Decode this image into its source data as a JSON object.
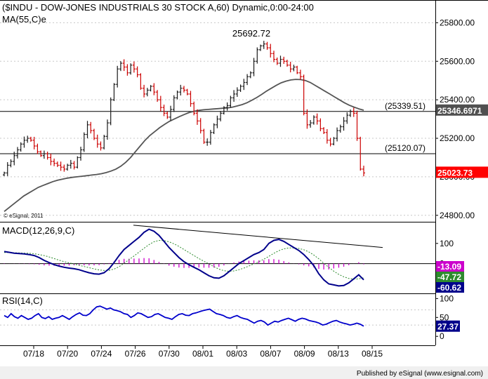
{
  "header": {
    "title": "($INDU - DOW-JONES INDUSTRIALS 30 STOCK A,60) Dynamic,0:00-24:00",
    "ma_label": "MA(55,C)e",
    "copyright": "© eSignal, 2011"
  },
  "footer": {
    "published": "Published by eSignal (www.esignal.com)"
  },
  "colors": {
    "up_bar": "#1a1a1a",
    "down_bar": "#cc0000",
    "ma_line": "#555555",
    "macd_line": "#00008b",
    "signal_line": "#2e8b2e",
    "histogram": "#cc00cc",
    "rsi_line": "#0000cc",
    "last_price_bg": "#ff0000",
    "level_bg": "#505050",
    "axis": "#000000",
    "grid": "#c8c8c8"
  },
  "chart_data": [
    {
      "type": "line",
      "panel": "price",
      "title": "($INDU - DOW-JONES INDUSTRIALS 30 STOCK A,60) Dynamic,0:00-24:00",
      "x_tick_labels": [
        "07/18",
        "07/20",
        "07/24",
        "07/26",
        "07/30",
        "08/01",
        "08/03",
        "08/07",
        "08/09",
        "08/13",
        "08/15"
      ],
      "y_ticks": [
        "25800.00",
        "25600.00",
        "25400.00",
        "25200.00",
        "25000.00",
        "24800.00"
      ],
      "ylim": [
        24770,
        25900
      ],
      "grid": true,
      "series": [
        {
          "name": "Price",
          "style": "ohlc-bars",
          "values": [
            25020,
            25060,
            25080,
            25110,
            25140,
            25170,
            25190,
            25200,
            25190,
            25160,
            25130,
            25110,
            25120,
            25100,
            25080,
            25070,
            25060,
            25050,
            25040,
            25060,
            25070,
            25050,
            25100,
            25140,
            25220,
            25270,
            25240,
            25200,
            25170,
            25150,
            25210,
            25280,
            25400,
            25480,
            25560,
            25590,
            25570,
            25540,
            25580,
            25560,
            25530,
            25460,
            25430,
            25450,
            25470,
            25440,
            25400,
            25360,
            25330,
            25310,
            25350,
            25410,
            25440,
            25460,
            25450,
            25430,
            25380,
            25330,
            25290,
            25240,
            25180,
            25180,
            25230,
            25270,
            25300,
            25330,
            25360,
            25370,
            25410,
            25430,
            25450,
            25470,
            25490,
            25520,
            25540,
            25600,
            25660,
            25680,
            25690,
            25670,
            25640,
            25610,
            25590,
            25610,
            25600,
            25580,
            25560,
            25570,
            25540,
            25520,
            25330,
            25270,
            25280,
            25310,
            25290,
            25250,
            25230,
            25190,
            25170,
            25200,
            25240,
            25260,
            25290,
            25320,
            25340,
            25330,
            25200,
            25040,
            25020
          ]
        },
        {
          "name": "MA(55,C)e",
          "values": [
            24820,
            24840,
            24860,
            24880,
            24900,
            24915,
            24930,
            24945,
            24955,
            24965,
            24975,
            24982,
            24988,
            24993,
            24997,
            25000,
            25003,
            25006,
            25009,
            25012,
            25016,
            25022,
            25030,
            25040,
            25055,
            25075,
            25100,
            25130,
            25160,
            25190,
            25215,
            25235,
            25255,
            25272,
            25288,
            25300,
            25312,
            25323,
            25333,
            25340,
            25345,
            25348,
            25350,
            25352,
            25354,
            25356,
            25358,
            25362,
            25368,
            25375,
            25385,
            25398,
            25412,
            25428,
            25445,
            25460,
            25475,
            25488,
            25497,
            25503,
            25506,
            25505,
            25500,
            25490,
            25475,
            25460,
            25445,
            25430,
            25415,
            25400,
            25385,
            25372,
            25362,
            25353,
            25346
          ]
        }
      ],
      "levels": [
        {
          "label": "(25339.51)",
          "value": 25339.51
        },
        {
          "label": "(25120.07)",
          "value": 25120.07
        }
      ],
      "annotations": [
        {
          "text": "25692.72",
          "value": 25692.72
        }
      ],
      "axis_badges": [
        {
          "text": "25346.6971",
          "value": 25346.6971,
          "style": "level"
        },
        {
          "text": "25023.73",
          "value": 25023.73,
          "style": "last"
        }
      ]
    },
    {
      "type": "line",
      "panel": "macd",
      "title": "MACD(12,26,9,C)",
      "y_ticks": [
        "100",
        "0"
      ],
      "ylim": [
        -140,
        200
      ],
      "series": [
        {
          "name": "MACD",
          "values": [
            60,
            56,
            52,
            50,
            48,
            45,
            40,
            30,
            16,
            5,
            -5,
            -12,
            -18,
            -22,
            -25,
            -30,
            -38,
            -45,
            -50,
            -52,
            -45,
            -25,
            5,
            40,
            70,
            90,
            110,
            130,
            155,
            170,
            160,
            140,
            110,
            80,
            55,
            30,
            10,
            -5,
            -18,
            -30,
            -45,
            -60,
            -70,
            -72,
            -60,
            -40,
            -20,
            0,
            15,
            30,
            45,
            55,
            70,
            100,
            115,
            120,
            110,
            95,
            80,
            65,
            45,
            20,
            -10,
            -50,
            -80,
            -100,
            -105,
            -110,
            -108,
            -95,
            -75,
            -55,
            -80
          ]
        },
        {
          "name": "Signal",
          "values": [
            55,
            55,
            54,
            53,
            52,
            51,
            49,
            45,
            40,
            33,
            25,
            17,
            10,
            4,
            -2,
            -8,
            -14,
            -20,
            -26,
            -31,
            -34,
            -33,
            -27,
            -15,
            2,
            20,
            38,
            57,
            76,
            94,
            108,
            115,
            114,
            108,
            98,
            85,
            70,
            55,
            40,
            25,
            12,
            -2,
            -15,
            -27,
            -35,
            -38,
            -36,
            -30,
            -22,
            -12,
            -1,
            10,
            22,
            36,
            51,
            64,
            73,
            78,
            78,
            75,
            69,
            58,
            43,
            24,
            2,
            -18,
            -37,
            -53,
            -65,
            -73,
            -76,
            -75,
            -70
          ]
        },
        {
          "name": "Histogram",
          "values": [
            5,
            1,
            -2,
            -3,
            -4,
            -6,
            -9,
            -15,
            -24,
            -28,
            -30,
            -29,
            -28,
            -26,
            -23,
            -22,
            -24,
            -25,
            -24,
            -21,
            -11,
            8,
            32,
            55,
            68,
            70,
            72,
            73,
            79,
            76,
            52,
            25,
            -4,
            -28,
            -43,
            -55,
            -60,
            -60,
            -58,
            -55,
            -57,
            -58,
            -55,
            -45,
            -25,
            -2,
            16,
            30,
            37,
            42,
            46,
            45,
            48,
            64,
            64,
            56,
            37,
            17,
            2,
            -10,
            -24,
            -38,
            -53,
            -74,
            -82,
            -82,
            -68,
            -57,
            -43,
            -22,
            1,
            20,
            -10
          ]
        },
        {
          "name": "Trendline",
          "style": "straight",
          "values": [
            190,
            80
          ]
        }
      ],
      "axis_badges": [
        {
          "text": "-13.09",
          "style": "histogram"
        },
        {
          "text": "-47.72",
          "style": "signal"
        },
        {
          "text": "-60.62",
          "style": "macd"
        }
      ]
    },
    {
      "type": "line",
      "panel": "rsi",
      "title": "RSI(14,C)",
      "y_ticks": [
        "100",
        "50",
        "0"
      ],
      "ylim": [
        -20,
        110
      ],
      "reference_lines": [
        70,
        30
      ],
      "series": [
        {
          "name": "RSI(14,C)",
          "values": [
            55,
            50,
            60,
            52,
            48,
            55,
            50,
            45,
            48,
            55,
            60,
            50,
            47,
            52,
            45,
            48,
            50,
            55,
            50,
            45,
            52,
            58,
            62,
            56,
            55,
            60,
            70,
            78,
            80,
            76,
            72,
            75,
            70,
            68,
            65,
            60,
            58,
            50,
            55,
            62,
            60,
            55,
            50,
            52,
            58,
            60,
            55,
            50,
            48,
            45,
            52,
            58,
            60,
            56,
            55,
            60,
            62,
            65,
            68,
            70,
            72,
            66,
            60,
            58,
            55,
            50,
            48,
            52,
            55,
            50,
            47,
            45,
            40,
            35,
            40,
            42,
            38,
            30,
            35,
            40,
            38,
            42,
            45,
            48,
            44,
            40,
            45,
            48,
            46,
            42,
            40,
            38,
            35,
            30,
            32,
            36,
            40,
            42,
            38,
            35,
            33,
            30,
            32,
            35,
            32,
            27
          ]
        }
      ],
      "axis_badges": [
        {
          "text": "27.37",
          "style": "rsi"
        }
      ]
    }
  ]
}
